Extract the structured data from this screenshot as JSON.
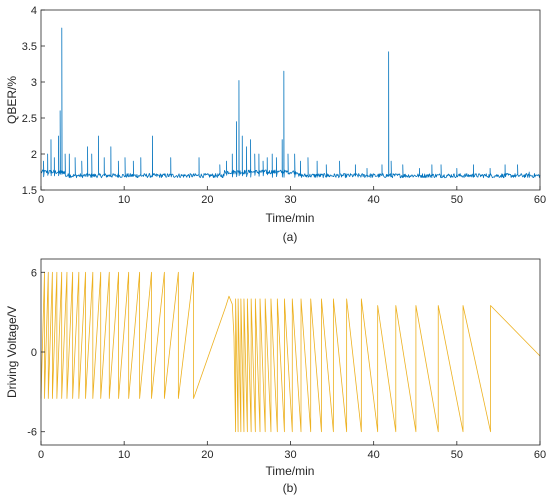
{
  "chart_data": [
    {
      "type": "line",
      "panel_caption": "(a)",
      "xlabel": "Time/min",
      "ylabel": "QBER/%",
      "xlim": [
        0,
        60
      ],
      "ylim": [
        1.5,
        4
      ],
      "xticks": [
        "0",
        "10",
        "20",
        "30",
        "40",
        "50",
        "60"
      ],
      "yticks": [
        "1.5",
        "2",
        "2.5",
        "3",
        "3.5",
        "4"
      ],
      "baseline": 1.7,
      "series": [
        {
          "color": "#0072bd",
          "spikes": [
            [
              0.3,
              1.9
            ],
            [
              0.8,
              2.0
            ],
            [
              1.2,
              2.2
            ],
            [
              1.6,
              1.95
            ],
            [
              2.1,
              2.25
            ],
            [
              2.3,
              2.6
            ],
            [
              2.5,
              3.75
            ],
            [
              2.9,
              2.0
            ],
            [
              3.4,
              2.0
            ],
            [
              4.1,
              1.95
            ],
            [
              4.9,
              1.9
            ],
            [
              5.6,
              2.1
            ],
            [
              6.1,
              2.0
            ],
            [
              6.9,
              2.25
            ],
            [
              7.6,
              1.95
            ],
            [
              8.4,
              2.1
            ],
            [
              9.3,
              1.9
            ],
            [
              10.1,
              1.95
            ],
            [
              11.1,
              1.9
            ],
            [
              12.0,
              1.95
            ],
            [
              13.4,
              2.25
            ],
            [
              15.6,
              1.95
            ],
            [
              19.0,
              1.95
            ],
            [
              21.5,
              1.85
            ],
            [
              22.3,
              1.9
            ],
            [
              23.0,
              2.0
            ],
            [
              23.5,
              2.45
            ],
            [
              23.8,
              3.02
            ],
            [
              24.2,
              2.25
            ],
            [
              24.7,
              2.1
            ],
            [
              25.2,
              2.2
            ],
            [
              25.7,
              2.0
            ],
            [
              26.2,
              2.0
            ],
            [
              26.7,
              1.9
            ],
            [
              27.2,
              1.95
            ],
            [
              27.8,
              2.0
            ],
            [
              28.3,
              1.95
            ],
            [
              29.0,
              2.2
            ],
            [
              29.2,
              3.15
            ],
            [
              29.7,
              2.0
            ],
            [
              30.5,
              2.0
            ],
            [
              31.2,
              1.9
            ],
            [
              32.1,
              1.95
            ],
            [
              33.2,
              1.9
            ],
            [
              34.3,
              1.85
            ],
            [
              35.9,
              1.9
            ],
            [
              37.8,
              1.85
            ],
            [
              39.2,
              1.8
            ],
            [
              41.0,
              1.85
            ],
            [
              41.8,
              3.42
            ],
            [
              42.1,
              1.9
            ],
            [
              43.5,
              1.85
            ],
            [
              45.5,
              1.8
            ],
            [
              47.0,
              1.85
            ],
            [
              48.1,
              1.85
            ],
            [
              50.0,
              1.8
            ],
            [
              52.0,
              1.85
            ],
            [
              54.0,
              1.8
            ],
            [
              55.8,
              1.85
            ],
            [
              57.3,
              1.85
            ],
            [
              58.7,
              1.75
            ]
          ]
        }
      ]
    },
    {
      "type": "line",
      "panel_caption": "(b)",
      "xlabel": "Time/min",
      "ylabel": "Driving Voltage/V",
      "xlim": [
        0,
        60
      ],
      "ylim": [
        -7,
        7
      ],
      "xticks": [
        "0",
        "10",
        "20",
        "30",
        "40",
        "50",
        "60"
      ],
      "yticks": [
        "-6",
        "0",
        "6"
      ],
      "series": [
        {
          "color": "#edb120",
          "segments_upward": [
            [
              0,
              1.8,
              -3.5,
              6
            ],
            [
              1.8,
              19.0,
              -3.5,
              6
            ],
            [
              19.0,
              22.2,
              -3.5,
              3.4
            ],
            [
              22.2,
              23.0,
              3.4,
              4.2
            ]
          ],
          "segments_downward": [
            [
              23.6,
              40.0,
              4.0,
              -6
            ],
            [
              40.0,
              60.0,
              3.5,
              -6
            ]
          ],
          "end_value": -0.3
        }
      ]
    }
  ]
}
